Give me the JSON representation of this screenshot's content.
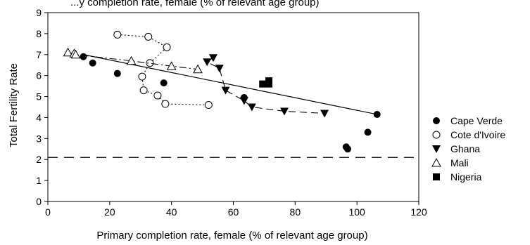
{
  "chart_data": {
    "type": "scatter",
    "title": "Primary completion rate, female (% of relevant age group)",
    "title_visible_fragment": "...y completion rate, female (% of relevant age group)",
    "xlabel": "Primary completion rate, female (% of relevant age group)",
    "ylabel": "Total Fertility Rate",
    "xlim": [
      0,
      120
    ],
    "ylim": [
      0,
      9
    ],
    "xticks": [
      0,
      20,
      40,
      60,
      80,
      100,
      120
    ],
    "yticks": [
      0,
      1,
      2,
      3,
      4,
      5,
      6,
      7,
      8,
      9
    ],
    "grid": false,
    "legend_position": "right",
    "reference_line": {
      "y": 2.1,
      "style": "dashed"
    },
    "series": [
      {
        "name": "Cape Verde",
        "marker": "filled-circle",
        "line": "none",
        "points": [
          [
            11.5,
            6.9
          ],
          [
            14.5,
            6.6
          ],
          [
            22.5,
            6.1
          ],
          [
            37.5,
            5.65
          ],
          [
            63.5,
            4.95
          ],
          [
            96.5,
            2.6
          ],
          [
            97,
            2.5
          ],
          [
            103.5,
            3.3
          ],
          [
            106.5,
            4.15
          ]
        ]
      },
      {
        "name": "Cote d'Ivoire",
        "marker": "open-circle",
        "line": "dotted",
        "points": [
          [
            22.5,
            7.95
          ],
          [
            32.5,
            7.85
          ],
          [
            38.5,
            7.35
          ],
          [
            33,
            6.6
          ],
          [
            30.5,
            5.95
          ],
          [
            31,
            5.3
          ],
          [
            35.5,
            5.05
          ],
          [
            38,
            4.65
          ],
          [
            52,
            4.6
          ]
        ]
      },
      {
        "name": "Ghana",
        "marker": "filled-triangle-down",
        "line": "dashed",
        "points": [
          [
            53.5,
            6.85
          ],
          [
            51.5,
            6.65
          ],
          [
            55.5,
            6.35
          ],
          [
            57.5,
            5.3
          ],
          [
            63.5,
            4.8
          ],
          [
            66,
            4.5
          ],
          [
            76.5,
            4.3
          ],
          [
            89.5,
            4.2
          ]
        ]
      },
      {
        "name": "Mali",
        "marker": "open-triangle-up",
        "line": "dash-dot",
        "points": [
          [
            6.5,
            7.1
          ],
          [
            8.5,
            7.05
          ],
          [
            9,
            7.0
          ],
          [
            27,
            6.7
          ],
          [
            40,
            6.45
          ],
          [
            48.5,
            6.3
          ]
        ]
      },
      {
        "name": "Nigeria",
        "marker": "filled-square",
        "line": "none",
        "points": [
          [
            69.5,
            5.6
          ],
          [
            71.5,
            5.6
          ],
          [
            71.5,
            5.75
          ]
        ]
      }
    ],
    "fit_line": {
      "style": "solid",
      "from": [
        11.5,
        7.0
      ],
      "to": [
        106.5,
        4.15
      ]
    }
  }
}
